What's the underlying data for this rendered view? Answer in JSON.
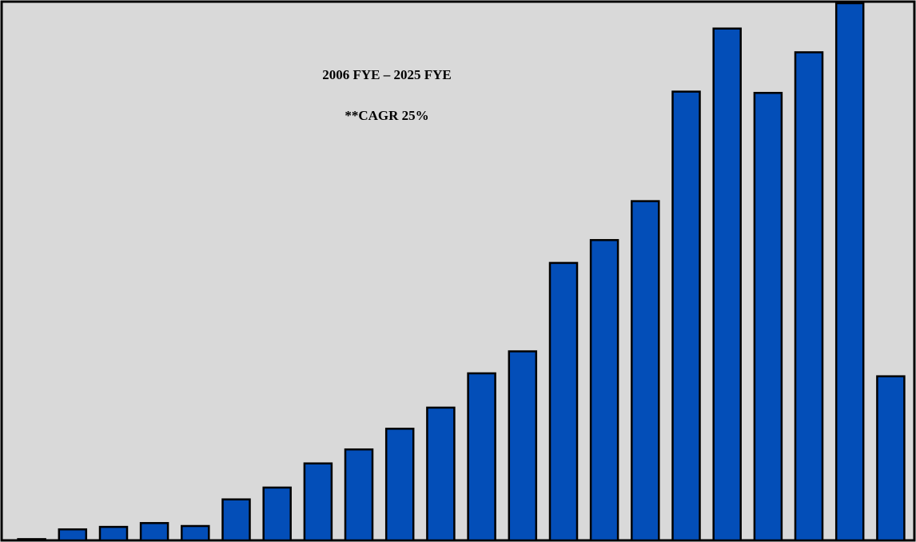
{
  "chart_data": {
    "type": "bar",
    "title": "",
    "xlabel": "",
    "ylabel": "",
    "annotations": [
      "2006 FYE – 2025 FYE",
      "**CAGR  25%"
    ],
    "values": [
      0.3,
      2.6,
      3.2,
      4.1,
      3.4,
      9.7,
      12.5,
      18.2,
      21.5,
      26.4,
      31.4,
      39.5,
      44.7,
      65.6,
      71.0,
      80.2,
      106.1,
      121.0,
      105.8,
      115.4,
      127.0,
      38.8
    ],
    "ylim": [
      0,
      127
    ],
    "grid": false,
    "legend": "none",
    "colors": {
      "bar_fill": "#034EB8",
      "bar_stroke": "#000000",
      "plot_background": "#D9D9D9",
      "frame": "#000000"
    }
  }
}
